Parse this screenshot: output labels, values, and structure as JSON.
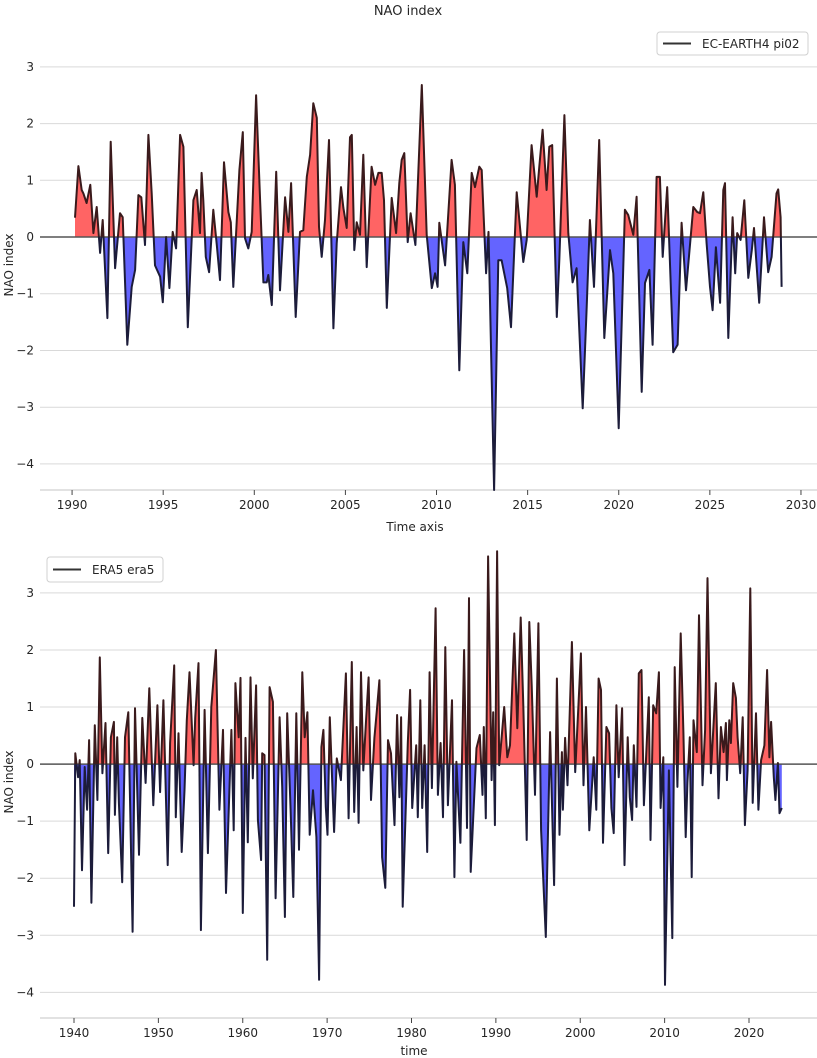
{
  "colors": {
    "positive_fill": "#ff6464",
    "negative_fill": "#6464ff",
    "line_positive": "#3a1a1c",
    "line_negative": "#1c1c3a",
    "zero_line": "#555555",
    "grid": "#d9d9d9"
  },
  "chart_data": [
    {
      "type": "area",
      "title": "NAO index",
      "xlabel": "Time axis",
      "ylabel": "NAO index",
      "legend": {
        "label": "EC-EARTH4 pi02",
        "placement": "top-right"
      },
      "grid": true,
      "xlim": [
        1988.24,
        2030.88
      ],
      "ylim": [
        -4.46,
        3.65
      ],
      "xticks": [
        1990,
        1995,
        2000,
        2005,
        2010,
        2015,
        2020,
        2025,
        2030
      ],
      "xtick_labels": [
        "1990",
        "1995",
        "2000",
        "2005",
        "2010",
        "2015",
        "2020",
        "2025",
        "2030"
      ],
      "yticks": [
        3,
        2,
        1,
        0,
        -1,
        -2,
        -3,
        -4
      ],
      "ytick_labels": [
        "3",
        "2",
        "1",
        "0",
        "−1",
        "−2",
        "−3",
        "−4"
      ],
      "fill_positive_negative": true,
      "x": [
        1990.16,
        1990.35,
        1990.53,
        1990.62,
        1990.8,
        1991.0,
        1991.17,
        1991.35,
        1991.54,
        1991.68,
        1991.94,
        1992.12,
        1992.36,
        1992.63,
        1992.78,
        1993.03,
        1993.27,
        1993.46,
        1993.64,
        1993.8,
        1994.0,
        1994.19,
        1994.37,
        1994.55,
        1994.83,
        1994.98,
        1995.16,
        1995.34,
        1995.52,
        1995.71,
        1995.93,
        1996.11,
        1996.35,
        1996.66,
        1996.84,
        1997.02,
        1997.11,
        1997.2,
        1997.34,
        1997.52,
        1997.75,
        1997.94,
        1998.12,
        1998.34,
        1998.58,
        1998.71,
        1998.85,
        1999.18,
        1999.37,
        1999.49,
        1999.67,
        1999.86,
        2000.1,
        2000.32,
        2000.5,
        2000.68,
        2000.77,
        2000.96,
        2001.2,
        2001.41,
        2001.69,
        2001.87,
        2002.02,
        2002.27,
        2002.51,
        2002.69,
        2002.88,
        2003.06,
        2003.24,
        2003.43,
        2003.55,
        2003.7,
        2003.88,
        2004.1,
        2004.34,
        2004.52,
        2004.76,
        2004.89,
        2005.07,
        2005.25,
        2005.35,
        2005.49,
        2005.62,
        2005.8,
        2005.98,
        2006.17,
        2006.44,
        2006.63,
        2006.81,
        2006.99,
        2007.12,
        2007.27,
        2007.54,
        2007.78,
        2007.96,
        2008.09,
        2008.23,
        2008.42,
        2008.58,
        2008.84,
        2009.19,
        2009.46,
        2009.74,
        2009.92,
        2010.06,
        2010.15,
        2010.47,
        2010.83,
        2011.01,
        2011.25,
        2011.47,
        2011.69,
        2011.93,
        2012.11,
        2012.35,
        2012.48,
        2012.72,
        2012.85,
        2013.16,
        2013.39,
        2013.57,
        2013.88,
        2014.09,
        2014.4,
        2014.76,
        2014.95,
        2015.22,
        2015.5,
        2015.64,
        2015.82,
        2016.04,
        2016.19,
        2016.35,
        2016.6,
        2016.74,
        2017.02,
        2017.23,
        2017.47,
        2017.69,
        2018.02,
        2018.24,
        2018.42,
        2018.64,
        2018.93,
        2019.21,
        2019.52,
        2019.7,
        2020.0,
        2020.34,
        2020.52,
        2020.8,
        2020.98,
        2021.26,
        2021.44,
        2021.68,
        2021.86,
        2022.08,
        2022.26,
        2022.41,
        2022.66,
        2022.99,
        2023.23,
        2023.45,
        2023.69,
        2024.09,
        2024.31,
        2024.46,
        2024.64,
        2024.82,
        2025.01,
        2025.15,
        2025.33,
        2025.56,
        2025.74,
        2025.83,
        2026.01,
        2026.25,
        2026.39,
        2026.5,
        2026.69,
        2026.89,
        2027.11,
        2027.3,
        2027.42,
        2027.71,
        2027.97,
        2028.2,
        2028.39,
        2028.66,
        2028.75,
        2028.88,
        2028.94
      ],
      "y": [
        0.34,
        1.25,
        0.83,
        0.77,
        0.6,
        0.92,
        0.07,
        0.53,
        -0.28,
        0.3,
        -1.43,
        1.68,
        -0.55,
        0.42,
        0.35,
        -1.9,
        -0.88,
        -0.58,
        0.74,
        0.7,
        -0.14,
        1.8,
        0.77,
        -0.5,
        -0.7,
        -1.15,
        0,
        -0.9,
        0.09,
        -0.2,
        1.8,
        1.59,
        -1.59,
        0.65,
        0.83,
        0.07,
        1.13,
        0.65,
        -0.35,
        -0.62,
        0.48,
        -0.14,
        -0.76,
        1.32,
        0.44,
        0.26,
        -0.88,
        1.18,
        1.85,
        -0.02,
        -0.2,
        0.09,
        2.5,
        0.65,
        -0.8,
        -0.8,
        -0.67,
        -1.2,
        1.15,
        -0.94,
        0.7,
        0.09,
        0.95,
        -1.41,
        0.09,
        0.12,
        1.06,
        1.45,
        2.36,
        2.1,
        0.18,
        -0.35,
        0.3,
        1.71,
        -1.61,
        -0.11,
        0.88,
        0.51,
        0.16,
        1.76,
        1.8,
        -0.23,
        0.26,
        0.04,
        1.45,
        -0.53,
        1.24,
        0.92,
        1.13,
        1.13,
        0.65,
        -1.25,
        0.69,
        0.07,
        0.95,
        1.36,
        1.48,
        -0.09,
        0.42,
        -0.14,
        2.68,
        0.04,
        -0.9,
        -0.64,
        -0.88,
        0.25,
        -0.5,
        1.36,
        0.92,
        -2.35,
        -0.09,
        -0.64,
        1.13,
        0.88,
        1.24,
        1.18,
        -0.64,
        0.09,
        -4.46,
        -0.41,
        -0.41,
        -0.9,
        -1.59,
        0.79,
        -0.44,
        -0.05,
        1.62,
        0.71,
        1.24,
        1.89,
        0.83,
        1.59,
        1.62,
        -1.41,
        -0.41,
        2.15,
        0.07,
        -0.8,
        -0.55,
        -3.02,
        -1.23,
        0.3,
        -0.88,
        1.71,
        -1.78,
        -0.23,
        -0.64,
        -3.37,
        0.48,
        0.39,
        0.04,
        0.71,
        -2.73,
        -0.81,
        -0.58,
        -1.9,
        1.06,
        1.06,
        -0.35,
        0.88,
        -2.03,
        -1.9,
        0.25,
        -0.94,
        0.53,
        0.44,
        0.42,
        0.79,
        -0.11,
        -0.88,
        -1.29,
        -0.18,
        -1.16,
        0.83,
        0.95,
        -1.78,
        0.35,
        -0.64,
        0.07,
        -0.05,
        0.65,
        -0.72,
        -0.23,
        0.16,
        -1.16,
        0.35,
        -0.62,
        -0.35,
        0.77,
        0.84,
        0.35,
        -0.88
      ]
    },
    {
      "type": "area",
      "xlabel": "time",
      "ylabel": "NAO index",
      "legend": {
        "label": "ERA5 era5",
        "placement": "top-left"
      },
      "grid": true,
      "xlim": [
        1935.97,
        2028.06
      ],
      "ylim": [
        -4.45,
        3.84
      ],
      "xticks": [
        1940,
        1950,
        1960,
        1970,
        1980,
        1990,
        2000,
        2010,
        2020
      ],
      "xtick_labels": [
        "1940",
        "1950",
        "1960",
        "1970",
        "1980",
        "1990",
        "2000",
        "2010",
        "2020"
      ],
      "yticks": [
        3,
        2,
        1,
        0,
        -1,
        -2,
        -3,
        -4
      ],
      "ytick_labels": [
        "3",
        "2",
        "1",
        "0",
        "−1",
        "−2",
        "−3",
        "−4"
      ],
      "fill_positive_negative": true,
      "x": [
        1940.0,
        1940.15,
        1940.48,
        1940.68,
        1940.95,
        1941.27,
        1941.55,
        1941.79,
        1942.06,
        1942.46,
        1942.77,
        1943.06,
        1943.37,
        1943.73,
        1944.05,
        1944.37,
        1944.73,
        1944.85,
        1945.12,
        1945.32,
        1945.71,
        1946.04,
        1946.43,
        1946.94,
        1947.23,
        1947.7,
        1948.1,
        1948.49,
        1948.93,
        1949.4,
        1949.88,
        1950.2,
        1950.6,
        1951.1,
        1951.39,
        1951.87,
        1952.06,
        1952.38,
        1952.77,
        1953.1,
        1953.37,
        1953.69,
        1954.17,
        1954.37,
        1954.76,
        1955.04,
        1955.48,
        1955.87,
        1956.27,
        1956.82,
        1957.23,
        1957.66,
        1958.01,
        1958.65,
        1958.93,
        1959.13,
        1959.52,
        1959.73,
        1960.0,
        1960.32,
        1960.6,
        1960.92,
        1961.19,
        1961.58,
        1961.79,
        1962.18,
        1962.3,
        1962.58,
        1962.9,
        1963.18,
        1963.57,
        1963.89,
        1964.37,
        1964.68,
        1965.0,
        1965.27,
        1965.67,
        1965.99,
        1966.35,
        1966.67,
        1967.06,
        1967.34,
        1967.66,
        1967.93,
        1968.33,
        1968.73,
        1969.05,
        1969.32,
        1969.56,
        1969.84,
        1970.04,
        1970.32,
        1970.83,
        1971.15,
        1971.63,
        1972.22,
        1972.54,
        1972.93,
        1973.21,
        1973.49,
        1973.73,
        1974.01,
        1974.29,
        1974.6,
        1974.92,
        1975.2,
        1975.6,
        1975.87,
        1976.19,
        1976.51,
        1976.9,
        1977.22,
        1977.57,
        1977.98,
        1978.29,
        1978.57,
        1978.77,
        1978.96,
        1979.56,
        1979.84,
        1980.08,
        1980.56,
        1980.75,
        1981.04,
        1981.27,
        1981.55,
        1981.86,
        1982.14,
        1982.42,
        1982.86,
        1983.13,
        1983.45,
        1983.73,
        1984.01,
        1984.32,
        1984.8,
        1985.08,
        1985.32,
        1985.8,
        1986.23,
        1986.58,
        1986.82,
        1987.02,
        1987.38,
        1987.7,
        1988.1,
        1988.42,
        1988.57,
        1988.81,
        1989.08,
        1989.49,
        1989.68,
        1989.88,
        1990.15,
        1990.39,
        1990.68,
        1990.99,
        1991.35,
        1991.67,
        1992.18,
        1992.54,
        1992.94,
        1993.25,
        1993.65,
        1993.96,
        1994.25,
        1994.64,
        1995.04,
        1995.36,
        1995.92,
        1996.43,
        1996.9,
        1997.23,
        1997.54,
        1997.82,
        1997.94,
        1998.21,
        1998.49,
        1999.01,
        1999.4,
        1999.8,
        2000.08,
        2000.39,
        2000.68,
        2001.07,
        2001.59,
        2001.9,
        2002.18,
        2002.46,
        2002.7,
        2003.1,
        2003.42,
        2003.69,
        2003.97,
        2004.29,
        2004.56,
        2004.96,
        2005.24,
        2005.63,
        2005.87,
        2006.15,
        2006.35,
        2006.67,
        2006.94,
        2007.26,
        2007.54,
        2007.82,
        2008.13,
        2008.33,
        2008.65,
        2009.0,
        2009.32,
        2009.52,
        2009.84,
        2010.04,
        2010.51,
        2010.91,
        2011.19,
        2011.51,
        2011.9,
        2012.23,
        2012.5,
        2012.7,
        2012.98,
        2013.21,
        2013.42,
        2013.81,
        2014.08,
        2014.49,
        2014.8,
        2015.08,
        2015.48,
        2016.07,
        2016.39,
        2016.67,
        2016.99,
        2017.26,
        2017.38,
        2017.66,
        2017.86,
        2018.13,
        2018.45,
        2018.65,
        2018.96,
        2019.25,
        2019.52,
        2019.84,
        2020.15,
        2020.44,
        2020.83,
        2021.11,
        2021.43,
        2021.82,
        2022.14,
        2022.42,
        2022.62,
        2022.94,
        2023.13,
        2023.42,
        2023.61,
        2023.89
      ],
      "y": [
        -2.5,
        0.19,
        -0.23,
        0.07,
        -1.86,
        -0.05,
        -0.8,
        0.42,
        -2.43,
        0.68,
        -0.63,
        1.87,
        -0.16,
        0.72,
        -1.56,
        0.47,
        0.74,
        -0.89,
        0.47,
        -0.68,
        -2.07,
        0.47,
        0.91,
        -2.94,
        0.98,
        -1.59,
        0.81,
        -0.33,
        1.33,
        -0.72,
        1.03,
        -0.49,
        1.12,
        -1.77,
        0.37,
        1.73,
        -0.93,
        0.54,
        -1.54,
        -0.46,
        0.77,
        1.61,
        -0.02,
        0.81,
        1.77,
        -2.91,
        0.95,
        -1.56,
        1.0,
        2.0,
        -0.8,
        0.6,
        -2.26,
        0.6,
        -1.16,
        1.42,
        0.47,
        1.51,
        -2.61,
        0.46,
        -1.37,
        1.52,
        -0.25,
        1.38,
        -0.98,
        -1.68,
        0.19,
        0.16,
        -3.43,
        1.35,
        1.09,
        -2.35,
        0.82,
        -0.4,
        -2.68,
        0.89,
        -0.8,
        -2.33,
        0.89,
        -1.5,
        1.61,
        0.47,
        0.91,
        -1.24,
        -0.46,
        -1.28,
        -3.78,
        0.3,
        0.6,
        -0.75,
        -1.24,
        0.82,
        -1.19,
        0.1,
        -0.28,
        1.59,
        -0.95,
        1.79,
        -0.84,
        0.65,
        -1.03,
        1.61,
        -0.11,
        0.72,
        1.52,
        -0.63,
        0.46,
        0.91,
        1.47,
        -1.63,
        -2.17,
        0.42,
        0.19,
        -1.07,
        0.86,
        -0.58,
        0.82,
        -2.5,
        0.37,
        1.3,
        -0.77,
        0.33,
        -0.93,
        1.12,
        -0.77,
        0.33,
        -1.54,
        1.61,
        -0.42,
        2.73,
        -0.54,
        0.37,
        -0.93,
        2.05,
        -0.72,
        1.12,
        -1.98,
        0.04,
        -1.38,
        2.0,
        -1.12,
        2.91,
        -1.89,
        -0.72,
        0.28,
        0.51,
        -0.54,
        0.65,
        -0.95,
        3.64,
        -0.28,
        0.91,
        -1.07,
        3.73,
        -0.02,
        0.46,
        1.0,
        0.12,
        0.33,
        2.29,
        0.63,
        2.57,
        1.03,
        -1.33,
        2.49,
        1.38,
        -0.54,
        2.47,
        -1.16,
        -3.03,
        0.56,
        -2.12,
        1.5,
        -1.24,
        0.21,
        -0.8,
        0.46,
        -0.37,
        2.14,
        -0.14,
        1.09,
        1.94,
        -0.37,
        1.0,
        -1.16,
        0.12,
        -0.8,
        1.5,
        1.3,
        -1.38,
        0.65,
        0.54,
        -0.77,
        -1.21,
        1.03,
        -0.23,
        0.98,
        -1.77,
        0.47,
        -0.58,
        -0.98,
        0.33,
        -0.75,
        1.59,
        1.65,
        -0.72,
        0.16,
        1.17,
        -1.33,
        1.03,
        0.89,
        1.61,
        -0.77,
        0.12,
        -3.87,
        -0.11,
        -3.05,
        1.7,
        -0.4,
        2.29,
        0.56,
        -1.28,
        -0.33,
        0.47,
        -1.98,
        0.77,
        0.21,
        2.61,
        -0.37,
        0.6,
        3.26,
        -0.16,
        1.42,
        -0.6,
        0.65,
        0.21,
        0.72,
        -0.28,
        0.77,
        0.37,
        1.42,
        1.16,
        0.47,
        -0.16,
        0.82,
        -1.07,
        -0.11,
        3.08,
        -0.68,
        0.89,
        -0.8,
        0.07,
        0.33,
        1.65,
        0.12,
        0.74,
        -0.23,
        -0.63,
        0.02,
        -0.86,
        -0.77
      ]
    }
  ]
}
